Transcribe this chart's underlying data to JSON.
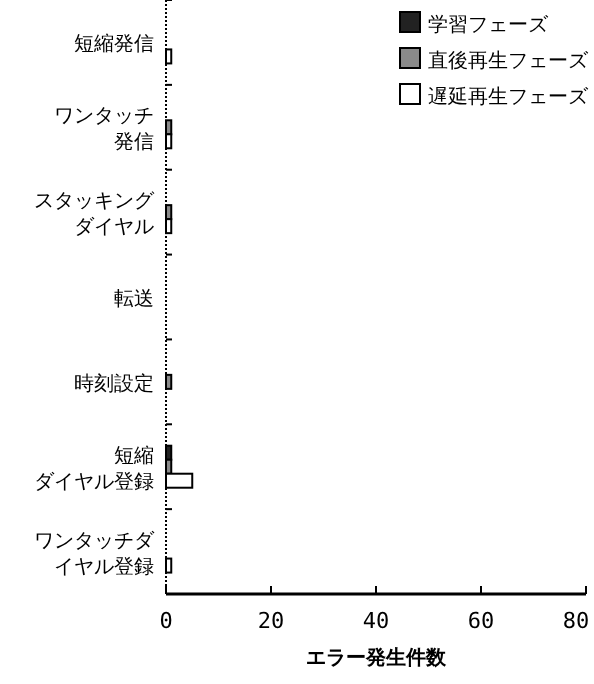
{
  "chart_data": {
    "type": "bar",
    "orientation": "horizontal",
    "xlabel": "エラー発生件数",
    "categories": [
      "短縮発信",
      "ワンタッチ発信",
      "スタッキングダイヤル",
      "転送",
      "時刻設定",
      "短縮ダイヤル登録",
      "ワンタッチダイヤル登録"
    ],
    "series": [
      {
        "name": "学習フェーズ",
        "color": "#222222",
        "values": [
          0,
          0,
          0,
          0,
          0,
          1,
          0
        ]
      },
      {
        "name": "直後再生フェーズ",
        "color": "#8a8a8a",
        "values": [
          0,
          1,
          1,
          0,
          1,
          1,
          0
        ]
      },
      {
        "name": "遅延再生フェーズ",
        "color": "#ffffff",
        "values": [
          1,
          1,
          1,
          0,
          0,
          5,
          1
        ]
      }
    ],
    "xlim": [
      0,
      80
    ],
    "xticks": [
      0,
      20,
      40,
      60,
      80
    ],
    "grid": false,
    "legend": "top right"
  }
}
